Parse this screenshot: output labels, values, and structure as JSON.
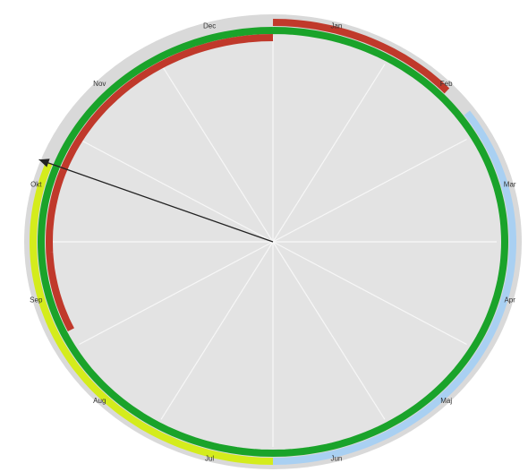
{
  "months": [
    "Jan",
    "Feb",
    "Mar",
    "Apr",
    "Maj",
    "Jun",
    "Jul",
    "Aug",
    "Sep",
    "Okt",
    "Nov",
    "Dec"
  ],
  "colors": {
    "background_disc": "#e3e3e3",
    "outer_track": "#d9d9d9",
    "spokes": "#f7f7f7",
    "red_band": "#c0392b",
    "green_band": "#1aa32a",
    "light_blue_band": "#a9d0f2",
    "yellow_green_band": "#d4ec1c",
    "pointer": "#222222"
  },
  "bands": [
    {
      "name": "green_ring",
      "color": "green_band",
      "from_month": 0,
      "to_month": 12
    },
    {
      "name": "red_outer",
      "color": "red_band",
      "from_month": 0,
      "to_month": 1.55
    },
    {
      "name": "light_blue_outer",
      "color": "light_blue_band",
      "from_month": 1.8,
      "to_month": 6.0
    },
    {
      "name": "yellow_outer",
      "color": "yellow_green_band",
      "from_month": 6.0,
      "to_month": 9.7
    },
    {
      "name": "red_inner",
      "color": "red_band",
      "from_month": 8.15,
      "to_month": 12
    }
  ],
  "pointer": {
    "month_position": 9.7
  }
}
